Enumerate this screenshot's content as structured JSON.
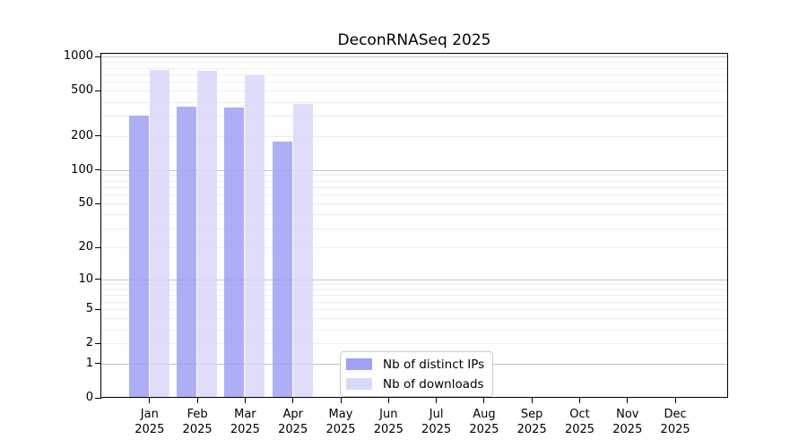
{
  "chart_data": {
    "type": "bar",
    "title": "DeconRNASeq 2025",
    "categories": [
      "Jan 2025",
      "Feb 2025",
      "Mar 2025",
      "Apr 2025",
      "May 2025",
      "Jun 2025",
      "Jul 2025",
      "Aug 2025",
      "Sep 2025",
      "Oct 2025",
      "Nov 2025",
      "Dec 2025"
    ],
    "series": [
      {
        "name": "Nb of distinct IPs",
        "color": "#a0a0f5",
        "values": [
          305,
          360,
          355,
          180,
          null,
          null,
          null,
          null,
          null,
          null,
          null,
          null
        ]
      },
      {
        "name": "Nb of downloads",
        "color": "#d8d8fa",
        "values": [
          760,
          745,
          680,
          380,
          null,
          null,
          null,
          null,
          null,
          null,
          null,
          null
        ]
      }
    ],
    "yscale": "log1p",
    "ylim": [
      0,
      1060
    ],
    "yticks": [
      1000,
      500,
      200,
      100,
      50,
      20,
      10,
      5,
      2,
      1,
      0
    ],
    "xlabel": "",
    "ylabel": "",
    "grid": "horizontal, minor lines at 2-9 per decade",
    "legend_position": "lower center",
    "colors": {
      "axis": "#000000",
      "grid_minor": "#ededed",
      "grid_major": "#c3c3c3",
      "background": "#ffffff",
      "legend_border": "#cccccc"
    }
  }
}
